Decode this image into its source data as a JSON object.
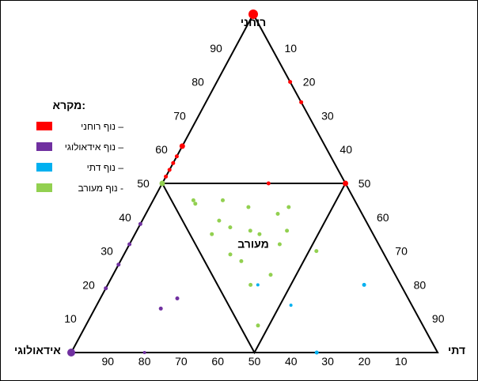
{
  "chart_data": {
    "type": "scatter",
    "subtype": "ternary",
    "vertices": {
      "top": "רוחני",
      "left": "אידאולוגי",
      "right": "דתי"
    },
    "center_label": "מעורב",
    "tick_labels": {
      "left_edge": [
        "10",
        "20",
        "30",
        "40",
        "50",
        "60",
        "70",
        "80",
        "90"
      ],
      "right_edge": [
        "10",
        "20",
        "30",
        "40",
        "50",
        "60",
        "70",
        "80",
        "90"
      ],
      "bottom_edge": [
        "90",
        "80",
        "70",
        "60",
        "50",
        "40",
        "30",
        "20",
        "10"
      ]
    },
    "legend": {
      "title": "מקרא:",
      "position": "left",
      "items": [
        {
          "label": "נוף רוחני –",
          "color": "#ff0000",
          "key": "spiritual"
        },
        {
          "label": "נוף אידאולוגי –",
          "color": "#7030a0",
          "key": "ideological"
        },
        {
          "label": "נוף דתי –",
          "color": "#00b0f0",
          "key": "religious"
        },
        {
          "label": "נוף מעורב -",
          "color": "#92d050",
          "key": "mixed"
        }
      ]
    },
    "series": [
      {
        "name": "נוף רוחני",
        "color": "#ff0000",
        "points": [
          {
            "spiritual": 100,
            "ideological": 0,
            "religious": 0,
            "size": 6
          },
          {
            "spiritual": 80,
            "ideological": 0,
            "religious": 20,
            "size": 2.5
          },
          {
            "spiritual": 74,
            "ideological": 0,
            "religious": 26,
            "size": 2.5
          },
          {
            "spiritual": 50,
            "ideological": 0,
            "religious": 50,
            "size": 3.5
          },
          {
            "spiritual": 50,
            "ideological": 21,
            "religious": 29,
            "size": 2.5
          },
          {
            "spiritual": 61,
            "ideological": 39,
            "religious": 0,
            "size": 3.5
          },
          {
            "spiritual": 58,
            "ideological": 42,
            "religious": 0,
            "size": 2.5
          },
          {
            "spiritual": 56,
            "ideological": 44,
            "religious": 0,
            "size": 2.5
          },
          {
            "spiritual": 54,
            "ideological": 46,
            "religious": 0,
            "size": 2.5
          },
          {
            "spiritual": 52,
            "ideological": 48,
            "religious": 0,
            "size": 2.5
          }
        ]
      },
      {
        "name": "נוף אידאולוגי",
        "color": "#7030a0",
        "points": [
          {
            "spiritual": 0,
            "ideological": 100,
            "religious": 0,
            "size": 5
          },
          {
            "spiritual": 38,
            "ideological": 62,
            "religious": 0,
            "size": 2.5
          },
          {
            "spiritual": 32,
            "ideological": 68,
            "religious": 0,
            "size": 2.5
          },
          {
            "spiritual": 26,
            "ideological": 74,
            "religious": 0,
            "size": 2.5
          },
          {
            "spiritual": 19,
            "ideological": 81,
            "religious": 0,
            "size": 2.5
          },
          {
            "spiritual": 16,
            "ideological": 63,
            "religious": 21,
            "size": 2.5
          },
          {
            "spiritual": 13,
            "ideological": 69,
            "religious": 18,
            "size": 2.5
          },
          {
            "spiritual": 0,
            "ideological": 80,
            "religious": 20,
            "size": 2
          }
        ]
      },
      {
        "name": "נוף דתי",
        "color": "#00b0f0",
        "points": [
          {
            "spiritual": 20,
            "ideological": 10,
            "religious": 70,
            "size": 2.5
          },
          {
            "spiritual": 20,
            "ideological": 39,
            "religious": 41,
            "size": 2
          },
          {
            "spiritual": 14,
            "ideological": 33,
            "religious": 53,
            "size": 2
          },
          {
            "spiritual": 0,
            "ideological": 33,
            "religious": 67,
            "size": 2.5
          }
        ]
      },
      {
        "name": "נוף מעורב",
        "color": "#92d050",
        "points": [
          {
            "spiritual": 50,
            "ideological": 50,
            "religious": 0,
            "size": 3.5
          },
          {
            "spiritual": 45,
            "ideological": 44,
            "religious": 11,
            "size": 2.5
          },
          {
            "spiritual": 44,
            "ideological": 44,
            "religious": 12,
            "size": 2.5
          },
          {
            "spiritual": 45,
            "ideological": 36,
            "religious": 19,
            "size": 2.5
          },
          {
            "spiritual": 43,
            "ideological": 30,
            "religious": 27,
            "size": 2.5
          },
          {
            "spiritual": 41,
            "ideological": 23,
            "religious": 36,
            "size": 2.5
          },
          {
            "spiritual": 43,
            "ideological": 19,
            "religious": 38,
            "size": 2.5
          },
          {
            "spiritual": 39,
            "ideological": 40,
            "religious": 21,
            "size": 2.5
          },
          {
            "spiritual": 37,
            "ideological": 38,
            "religious": 25,
            "size": 2.5
          },
          {
            "spiritual": 36,
            "ideological": 33,
            "religious": 31,
            "size": 2.5
          },
          {
            "spiritual": 35,
            "ideological": 31,
            "religious": 34,
            "size": 2.5
          },
          {
            "spiritual": 36,
            "ideological": 23,
            "religious": 41,
            "size": 2.5
          },
          {
            "spiritual": 35,
            "ideological": 44,
            "religious": 21,
            "size": 2.5
          },
          {
            "spiritual": 32,
            "ideological": 27,
            "religious": 41,
            "size": 2.5
          },
          {
            "spiritual": 29,
            "ideological": 42,
            "religious": 29,
            "size": 2.5
          },
          {
            "spiritual": 27,
            "ideological": 40,
            "religious": 33,
            "size": 2.5
          },
          {
            "spiritual": 23,
            "ideological": 34,
            "religious": 43,
            "size": 2.5
          },
          {
            "spiritual": 30,
            "ideological": 18,
            "religious": 52,
            "size": 2.5
          },
          {
            "spiritual": 20,
            "ideological": 41,
            "religious": 39,
            "size": 2.5
          },
          {
            "spiritual": 8,
            "ideological": 45,
            "religious": 47,
            "size": 2.5
          }
        ]
      }
    ]
  }
}
